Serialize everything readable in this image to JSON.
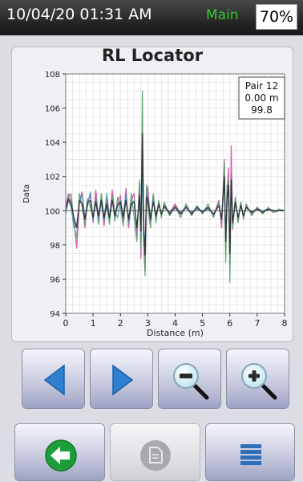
{
  "status": {
    "datetime": "10/04/20 01:31 AM",
    "source": "Main",
    "battery": "70%"
  },
  "screen": {
    "title": "RL Locator"
  },
  "readout": {
    "pair": "Pair 12",
    "distance": "0.00 m",
    "value": "99.8"
  },
  "chart_data": {
    "type": "line",
    "xlabel": "Distance (m)",
    "ylabel": "Data",
    "xlim": [
      0,
      8
    ],
    "ylim": [
      94,
      108
    ],
    "xticks": [
      0,
      1,
      2,
      3,
      4,
      5,
      6,
      7,
      8
    ],
    "yticks": [
      94,
      96,
      98,
      100,
      102,
      104,
      106,
      108
    ],
    "grid": true,
    "legend": "none",
    "cursor_x": 0,
    "reference_y": 100,
    "series": [
      {
        "color": "#d04aa8",
        "x": [
          0,
          0.1,
          0.2,
          0.3,
          0.4,
          0.5,
          0.6,
          0.7,
          0.8,
          0.9,
          1.0,
          1.1,
          1.2,
          1.3,
          1.4,
          1.5,
          1.6,
          1.7,
          1.8,
          1.9,
          2.0,
          2.1,
          2.2,
          2.3,
          2.4,
          2.5,
          2.6,
          2.7,
          2.75,
          2.8,
          2.85,
          2.9,
          2.95,
          3.0,
          3.1,
          3.2,
          3.3,
          3.4,
          3.5,
          3.6,
          3.8,
          4.0,
          4.2,
          4.4,
          4.6,
          4.8,
          5.0,
          5.2,
          5.4,
          5.6,
          5.7,
          5.8,
          5.85,
          5.9,
          5.95,
          6.0,
          6.05,
          6.1,
          6.2,
          6.3,
          6.4,
          6.5,
          6.6,
          6.8,
          7.0,
          7.2,
          7.4,
          7.6,
          7.8,
          8.0
        ],
        "y": [
          100.2,
          101.0,
          100.5,
          99.5,
          97.8,
          100.6,
          101.1,
          99.0,
          100.5,
          100.9,
          99.3,
          101.2,
          99.6,
          100.8,
          99.1,
          100.7,
          99.5,
          101.2,
          99.8,
          100.4,
          100.9,
          99.4,
          101.3,
          99.0,
          100.6,
          101.0,
          98.5,
          101.6,
          97.2,
          104.0,
          99.5,
          96.5,
          100.6,
          101.4,
          99.3,
          100.9,
          99.6,
          100.4,
          99.8,
          100.3,
          99.9,
          100.4,
          99.8,
          100.3,
          99.8,
          100.2,
          99.9,
          100.2,
          99.7,
          100.6,
          99.0,
          103.0,
          97.5,
          101.0,
          102.5,
          96.8,
          103.8,
          98.9,
          100.7,
          99.4,
          100.5,
          99.6,
          100.3,
          99.8,
          100.2,
          99.9,
          100.1,
          99.9,
          100.0,
          100.0
        ]
      },
      {
        "color": "#55a06a",
        "x": [
          0,
          0.1,
          0.2,
          0.3,
          0.4,
          0.5,
          0.6,
          0.7,
          0.8,
          0.9,
          1.0,
          1.1,
          1.2,
          1.3,
          1.4,
          1.5,
          1.6,
          1.7,
          1.8,
          1.9,
          2.0,
          2.1,
          2.2,
          2.3,
          2.4,
          2.5,
          2.6,
          2.7,
          2.75,
          2.8,
          2.85,
          2.9,
          2.95,
          3.0,
          3.1,
          3.2,
          3.3,
          3.4,
          3.5,
          3.6,
          3.8,
          4.0,
          4.2,
          4.4,
          4.6,
          4.8,
          5.0,
          5.2,
          5.4,
          5.6,
          5.7,
          5.8,
          5.85,
          5.9,
          5.95,
          6.0,
          6.05,
          6.1,
          6.2,
          6.3,
          6.4,
          6.5,
          6.6,
          6.8,
          7.0,
          7.2,
          7.4,
          7.6,
          7.8,
          8.0
        ],
        "y": [
          100.0,
          100.8,
          101.0,
          99.2,
          98.4,
          101.0,
          100.2,
          99.2,
          100.7,
          100.2,
          99.6,
          100.8,
          99.2,
          101.0,
          99.6,
          100.3,
          99.2,
          100.9,
          99.4,
          100.8,
          100.2,
          99.1,
          100.7,
          99.5,
          101.0,
          99.6,
          98.2,
          101.8,
          97.8,
          107.0,
          98.0,
          96.2,
          101.5,
          100.2,
          99.0,
          101.0,
          99.3,
          100.6,
          99.6,
          100.5,
          99.7,
          100.3,
          99.6,
          100.4,
          99.7,
          100.3,
          99.8,
          100.4,
          99.6,
          100.5,
          99.3,
          102.8,
          97.0,
          101.5,
          101.8,
          95.8,
          102.2,
          99.0,
          100.8,
          99.3,
          100.5,
          99.5,
          100.4,
          99.7,
          100.2,
          99.8,
          100.2,
          99.9,
          100.1,
          100.0
        ]
      },
      {
        "color": "#4a90b0",
        "x": [
          0,
          0.1,
          0.2,
          0.3,
          0.4,
          0.5,
          0.6,
          0.7,
          0.8,
          0.9,
          1.0,
          1.1,
          1.2,
          1.3,
          1.4,
          1.5,
          1.6,
          1.7,
          1.8,
          1.9,
          2.0,
          2.1,
          2.2,
          2.3,
          2.4,
          2.5,
          2.6,
          2.7,
          2.75,
          2.8,
          2.85,
          2.9,
          2.95,
          3.0,
          3.1,
          3.2,
          3.3,
          3.4,
          3.5,
          3.6,
          3.8,
          4.0,
          4.2,
          4.4,
          4.6,
          4.8,
          5.0,
          5.2,
          5.4,
          5.6,
          5.7,
          5.8,
          5.85,
          5.9,
          5.95,
          6.0,
          6.05,
          6.1,
          6.2,
          6.3,
          6.4,
          6.5,
          6.6,
          6.8,
          7.0,
          7.2,
          7.4,
          7.6,
          7.8,
          8.0
        ],
        "y": [
          99.8,
          100.6,
          100.2,
          99.0,
          99.2,
          100.4,
          101.0,
          99.6,
          100.3,
          101.1,
          99.4,
          100.6,
          99.4,
          100.5,
          99.4,
          101.0,
          99.6,
          100.6,
          99.9,
          99.6,
          100.6,
          99.7,
          101.0,
          99.3,
          100.3,
          100.6,
          99.0,
          100.6,
          98.6,
          102.0,
          99.0,
          97.8,
          100.9,
          100.8,
          99.6,
          100.6,
          99.8,
          100.3,
          99.9,
          100.2,
          99.9,
          100.2,
          99.9,
          100.2,
          99.9,
          100.1,
          100.0,
          100.1,
          99.8,
          100.3,
          99.6,
          101.8,
          98.4,
          100.6,
          101.2,
          97.8,
          101.6,
          99.4,
          100.4,
          99.6,
          100.3,
          99.7,
          100.2,
          99.9,
          100.1,
          100.0,
          100.1,
          100.0,
          100.0,
          100.0
        ]
      },
      {
        "color": "#2a2a2a",
        "x": [
          0,
          0.1,
          0.2,
          0.3,
          0.4,
          0.5,
          0.6,
          0.7,
          0.8,
          0.9,
          1.0,
          1.1,
          1.2,
          1.3,
          1.4,
          1.5,
          1.6,
          1.7,
          1.8,
          1.9,
          2.0,
          2.1,
          2.2,
          2.3,
          2.4,
          2.5,
          2.6,
          2.7,
          2.75,
          2.8,
          2.85,
          2.9,
          2.95,
          3.0,
          3.1,
          3.2,
          3.3,
          3.4,
          3.5,
          3.6,
          3.8,
          4.0,
          4.2,
          4.4,
          4.6,
          4.8,
          5.0,
          5.2,
          5.4,
          5.6,
          5.7,
          5.8,
          5.85,
          5.9,
          5.95,
          6.0,
          6.05,
          6.1,
          6.2,
          6.3,
          6.4,
          6.5,
          6.6,
          6.8,
          7.0,
          7.2,
          7.4,
          7.6,
          7.8,
          8.0
        ],
        "y": [
          100.1,
          100.7,
          100.4,
          99.6,
          99.0,
          100.6,
          100.4,
          99.5,
          100.5,
          100.6,
          99.6,
          100.5,
          99.7,
          100.6,
          99.6,
          100.4,
          99.6,
          100.6,
          99.7,
          100.3,
          100.5,
          99.6,
          100.6,
          99.5,
          100.4,
          100.5,
          99.0,
          100.9,
          98.8,
          104.5,
          98.8,
          97.4,
          100.8,
          100.6,
          99.5,
          100.5,
          99.7,
          100.4,
          99.8,
          100.3,
          99.8,
          100.2,
          99.8,
          100.2,
          99.8,
          100.2,
          99.9,
          100.2,
          99.8,
          100.3,
          99.5,
          102.0,
          98.2,
          100.8,
          101.5,
          97.5,
          101.8,
          99.3,
          100.5,
          99.6,
          100.3,
          99.7,
          100.2,
          99.9,
          100.1,
          99.9,
          100.1,
          100.0,
          100.0,
          100.0
        ]
      }
    ]
  },
  "buttons": [
    {
      "name": "scroll-left-button",
      "icon": "arrow-left-icon",
      "enabled": true
    },
    {
      "name": "scroll-right-button",
      "icon": "arrow-right-icon",
      "enabled": true
    },
    {
      "name": "zoom-out-button",
      "icon": "zoom-out-icon",
      "enabled": true
    },
    {
      "name": "zoom-in-button",
      "icon": "zoom-in-icon",
      "enabled": true
    },
    {
      "name": "back-button",
      "icon": "back-arrow-icon",
      "enabled": true
    },
    {
      "name": "report-button",
      "icon": "document-icon",
      "enabled": false
    },
    {
      "name": "list-button",
      "icon": "list-icon",
      "enabled": true
    }
  ],
  "colors": {
    "accent_blue": "#2f7fd0",
    "back_green": "#1e9e3a",
    "status_green": "#2ecc2e",
    "list_blue": "#2f6fb8"
  }
}
